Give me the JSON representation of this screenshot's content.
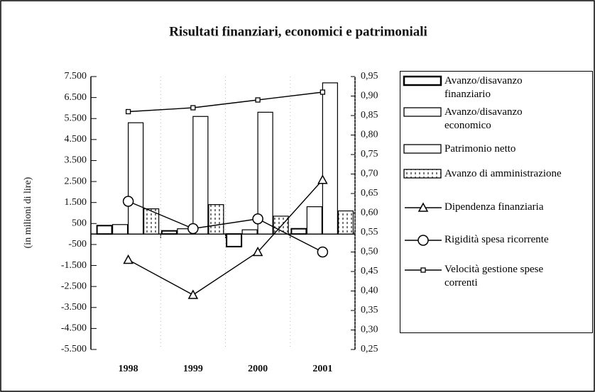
{
  "chart_data": {
    "type": "bar_line",
    "title": "Risultati finanziari, economici e patrimoniali",
    "y_label": "(in milioni di lire)",
    "categories": [
      "1998",
      "1999",
      "2000",
      "2001"
    ],
    "ylim": [
      -5500,
      7500
    ],
    "yticks": [
      {
        "value": 7500,
        "label": "7.500"
      },
      {
        "value": 6500,
        "label": "6.500"
      },
      {
        "value": 5500,
        "label": "5.500"
      },
      {
        "value": 4500,
        "label": "4.500"
      },
      {
        "value": 3500,
        "label": "3.500"
      },
      {
        "value": 2500,
        "label": "2.500"
      },
      {
        "value": 1500,
        "label": "1.500"
      },
      500,
      -500,
      {
        "value": -1500,
        "label": "-1.500"
      },
      {
        "value": -2500,
        "label": "-2.500"
      },
      {
        "value": -3500,
        "label": "-3.500"
      },
      {
        "value": -4500,
        "label": "-4.500"
      },
      {
        "value": -5500,
        "label": "-5.500"
      }
    ],
    "y2lim": [
      0.25,
      0.95
    ],
    "y2ticks": [
      {
        "value": 0.95,
        "label": "0,95"
      },
      {
        "value": 0.9,
        "label": "0,90"
      },
      {
        "value": 0.85,
        "label": "0,85"
      },
      {
        "value": 0.8,
        "label": "0,80"
      },
      {
        "value": 0.75,
        "label": "0,75"
      },
      {
        "value": 0.7,
        "label": "0,70"
      },
      {
        "value": 0.65,
        "label": "0,65"
      },
      {
        "value": 0.6,
        "label": "0,60"
      },
      {
        "value": 0.55,
        "label": "0,55"
      },
      {
        "value": 0.5,
        "label": "0,50"
      },
      {
        "value": 0.45,
        "label": "0,45"
      },
      {
        "value": 0.4,
        "label": "0,40"
      },
      {
        "value": 0.35,
        "label": "0,35"
      },
      {
        "value": 0.3,
        "label": "0,30"
      },
      {
        "value": 0.25,
        "label": "0,25"
      }
    ],
    "series": [
      {
        "name": "Avanzo/disavanzo finanziario",
        "type": "bar",
        "color": "#ffffff",
        "values": [
          400,
          150,
          -600,
          250
        ]
      },
      {
        "name": "Avanzo/disavanzo economico",
        "type": "bar",
        "color": "#ffffff",
        "values": [
          450,
          250,
          200,
          1300
        ]
      },
      {
        "name": "Patrimonio netto",
        "type": "bar",
        "color": "#ffffff",
        "values": [
          5300,
          5600,
          5800,
          7200
        ]
      },
      {
        "name": "Avanzo di amministrazione",
        "type": "bar",
        "color": "#d0d0d0",
        "values": [
          1200,
          1400,
          850,
          1100
        ]
      },
      {
        "name": "Dipendenza finanziaria",
        "type": "line",
        "marker": "triangle",
        "axis": "y2",
        "color": "#000000",
        "values": [
          0.48,
          0.39,
          0.5,
          0.685
        ]
      },
      {
        "name": "Rigidità spesa ricorrente",
        "type": "line",
        "marker": "circle",
        "axis": "y2",
        "color": "#000000",
        "values": [
          0.63,
          0.56,
          0.585,
          0.5
        ]
      },
      {
        "name": "Velocità gestione spese correnti",
        "type": "line",
        "marker": "square",
        "axis": "y2",
        "color": "#000000",
        "values": [
          0.86,
          0.87,
          0.89,
          0.91
        ]
      }
    ]
  }
}
